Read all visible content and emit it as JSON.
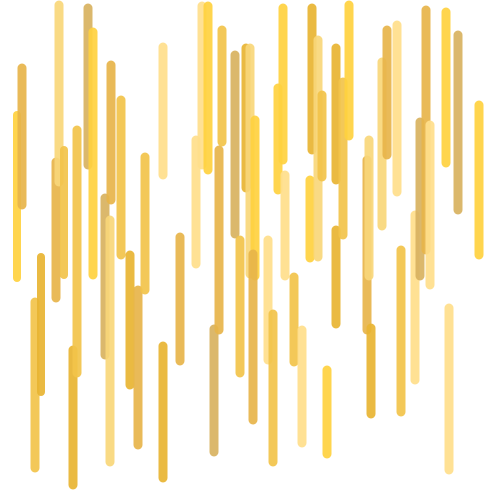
{
  "artwork": {
    "description_visible": "",
    "palette": [
      "#ffd23f",
      "#f3c44a",
      "#e8b54a",
      "#d9b260",
      "#f9d77a",
      "#ffdf8c",
      "#e9b533"
    ]
  }
}
